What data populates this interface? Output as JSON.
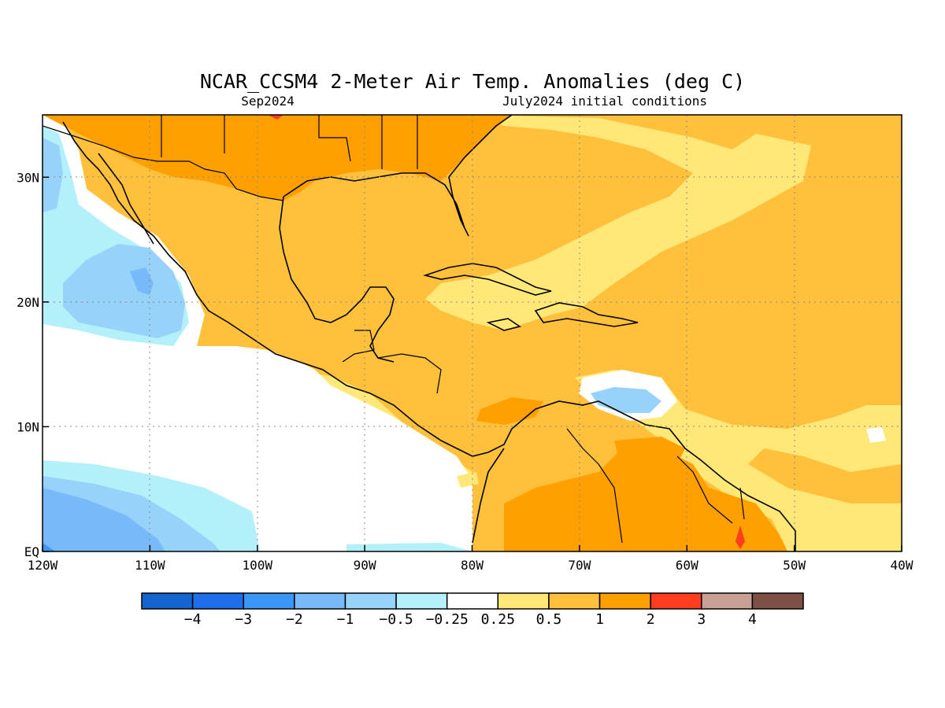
{
  "title": "NCAR_CCSM4 2-Meter Air Temp. Anomalies (deg C)",
  "subtitle_left": "Sep2024",
  "subtitle_right": "July2024 initial conditions",
  "map": {
    "lon_range": [
      -120,
      -40
    ],
    "lat_range": [
      0,
      35
    ],
    "x_ticks": [
      {
        "value": -120,
        "label": "120W"
      },
      {
        "value": -110,
        "label": "110W"
      },
      {
        "value": -100,
        "label": "100W"
      },
      {
        "value": -90,
        "label": "90W"
      },
      {
        "value": -80,
        "label": "80W"
      },
      {
        "value": -70,
        "label": "70W"
      },
      {
        "value": -60,
        "label": "60W"
      },
      {
        "value": -50,
        "label": "50W"
      },
      {
        "value": -40,
        "label": "40W"
      }
    ],
    "y_ticks": [
      {
        "value": 0,
        "label": "EQ"
      },
      {
        "value": 10,
        "label": "10N"
      },
      {
        "value": 20,
        "label": "20N"
      },
      {
        "value": 30,
        "label": "30N"
      }
    ],
    "gridlines": "dotted"
  },
  "colorbar": {
    "colors": [
      "#1464d2",
      "#1e6eeb",
      "#3c96f5",
      "#78b9fa",
      "#96d2fa",
      "#b4f0fa",
      "#ffffff",
      "#ffe878",
      "#ffc03c",
      "#ffa000",
      "#ff3c1e",
      "#c8a096",
      "#7d5046"
    ],
    "labels": [
      "-4",
      "-3",
      "-2",
      "-1",
      "-0.5",
      "-0.25",
      "0.25",
      "0.5",
      "1",
      "2",
      "3",
      "4"
    ]
  }
}
